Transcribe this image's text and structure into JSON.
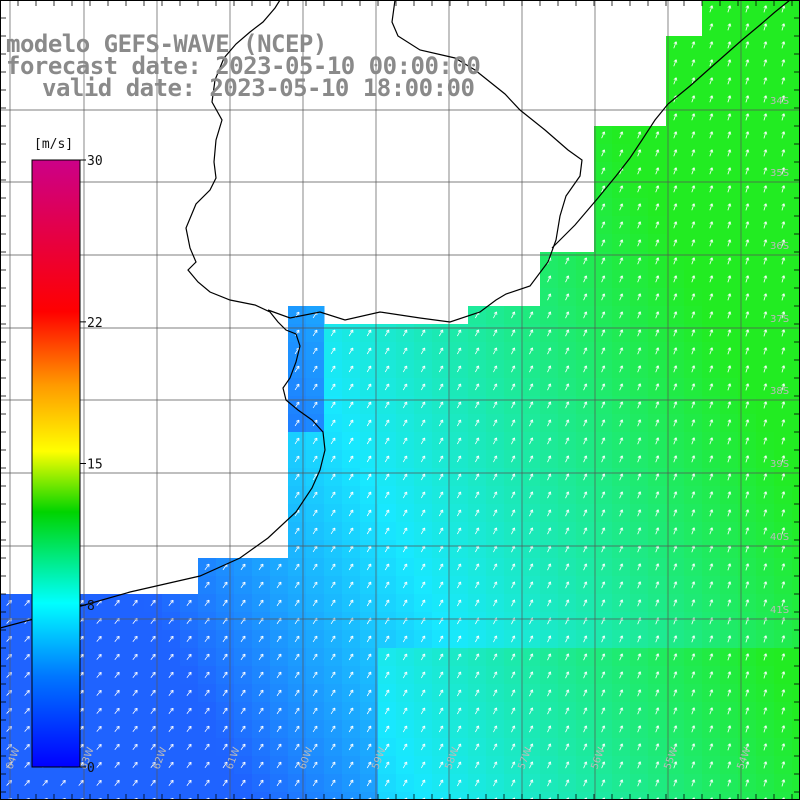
{
  "titles": {
    "line1": "modelo GEFS-WAVE (NCEP)",
    "line2": "forecast date: 2023-05-10 00:00:00",
    "line3": "valid date: 2023-05-10 18:00:00"
  },
  "colorbar": {
    "unit": "[m/s]",
    "ticks": [
      "30",
      "22",
      "15",
      "8",
      "0"
    ],
    "tick_values": [
      30,
      22,
      15,
      8,
      0
    ],
    "min": 0,
    "max": 30
  },
  "map": {
    "variable": "wind speed and direction",
    "field_colors": {
      "blue_low": "#1f63ff",
      "cyan_mid": "#18e8ff",
      "green_high": "#22ec22"
    },
    "arrow_color": "#ffffff",
    "coastline_color": "#000000",
    "grid_color": "#555555"
  },
  "lon_labels": [
    "64W",
    "63W",
    "62W",
    "61W",
    "60W",
    "59W",
    "58W",
    "57W",
    "56W",
    "55W",
    "54W"
  ],
  "lat_labels": [
    "34S",
    "35S",
    "36S",
    "37S",
    "38S",
    "39S",
    "40S",
    "41S"
  ]
}
